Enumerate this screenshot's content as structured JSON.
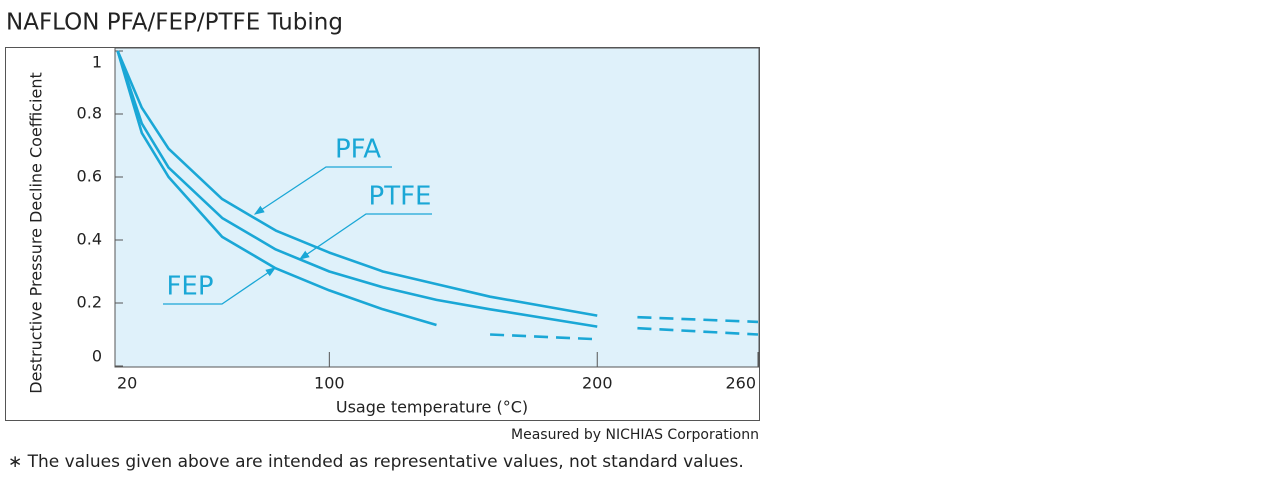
{
  "chart_data": {
    "type": "line",
    "title": "NAFLON PFA/FEP/PTFE Tubing",
    "y_label": "Destructive Pressure Decline Coefficient",
    "x_label": "Usage temperature (°C)",
    "note": "Measured by NICHIAS Corporationn",
    "footnote": "∗ The values given above are intended as representative values, not standard values.",
    "x": [
      21,
      30,
      40,
      60,
      80,
      100,
      120,
      140,
      160,
      200,
      215,
      260
    ],
    "xlim": [
      20,
      260
    ],
    "xticks": [
      20,
      100,
      200,
      260
    ],
    "ylim": [
      0,
      1
    ],
    "yticks": [
      0,
      0.2,
      0.4,
      0.6,
      0.8,
      1
    ],
    "background": "#dff1fa",
    "series": [
      {
        "name": "PFA",
        "color": "#1aa7d6",
        "values": [
          1.0,
          0.82,
          0.69,
          0.53,
          0.43,
          0.36,
          0.3,
          0.26,
          0.22,
          0.16,
          null,
          null
        ],
        "dashed_values": [
          null,
          null,
          null,
          null,
          null,
          null,
          null,
          null,
          null,
          null,
          0.155,
          0.14
        ]
      },
      {
        "name": "PTFE",
        "color": "#1aa7d6",
        "values": [
          1.0,
          0.77,
          0.63,
          0.47,
          0.37,
          0.3,
          0.25,
          0.21,
          0.18,
          0.125,
          null,
          null
        ],
        "dashed_values": [
          null,
          null,
          null,
          null,
          null,
          null,
          null,
          null,
          null,
          null,
          0.12,
          0.1
        ]
      },
      {
        "name": "FEP",
        "color": "#1aa7d6",
        "values": [
          1.0,
          0.74,
          0.6,
          0.41,
          0.31,
          0.24,
          0.18,
          0.13,
          null,
          null,
          null,
          null
        ],
        "dashed_values": [
          null,
          null,
          null,
          null,
          null,
          null,
          null,
          null,
          0.1,
          0.085,
          null,
          null
        ]
      }
    ]
  }
}
